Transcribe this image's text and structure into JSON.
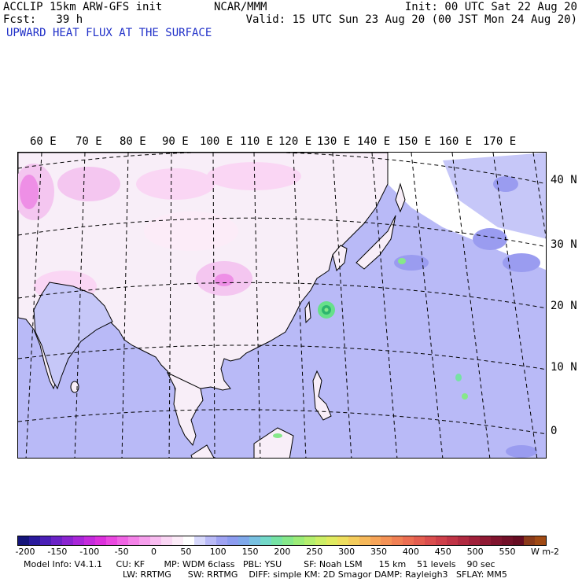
{
  "header": {
    "line1_left": "ACCLIP 15km ARW-GFS init",
    "line2_left": "Fcst:   39 h",
    "center": "NCAR/MMM",
    "init": "Init: 00 UTC Sat 22 Aug 20",
    "valid": "Valid: 15 UTC Sun 23 Aug 20 (00 JST Mon 24 Aug 20)",
    "field_title": "UPWARD HEAT FLUX AT THE SURFACE"
  },
  "map": {
    "lon_labels": [
      "60 E",
      "70 E",
      "80 E",
      "90 E",
      "100 E",
      "110 E",
      "120 E",
      "130 E",
      "140 E",
      "150 E",
      "160 E",
      "170 E"
    ],
    "lat_labels": [
      "40 N",
      "30 N",
      "20 N",
      "10 N",
      "0"
    ],
    "colors": {
      "ocean": "#b9baf7",
      "ocean_light": "#c6c7f8",
      "ocean_dark": "#9a9cf0",
      "land": "#f8eef8",
      "land_pink": "#f4c6f0",
      "land_magenta": "#ee8fe6",
      "coast": "#000000",
      "grid": "#000000",
      "typhoon_green": "#66e08a",
      "typhoon_core": "#2db56e"
    },
    "features": [
      "typhoon-near-taiwan-okinawa",
      "warm-flux-spot-east-of-luzon"
    ]
  },
  "colorbar": {
    "units": "W m-2",
    "ticks": [
      "-200",
      "-150",
      "-100",
      "-50",
      "0",
      "50",
      "100",
      "150",
      "200",
      "250",
      "300",
      "350",
      "400",
      "450",
      "500",
      "550"
    ],
    "colors": [
      "#15157a",
      "#2a1a9c",
      "#4a1fb6",
      "#6a22c6",
      "#8a24d0",
      "#a826d8",
      "#c42adc",
      "#dc30dc",
      "#ea48e0",
      "#f064e4",
      "#f482e8",
      "#f69fec",
      "#f8bcf0",
      "#fad6f4",
      "#fcecf8",
      "#ffffff",
      "#d7d8fb",
      "#b9baf7",
      "#9fa3f3",
      "#8c9cf0",
      "#7fa8ea",
      "#78c0e0",
      "#73d8c8",
      "#76e2a4",
      "#86e88a",
      "#9cec78",
      "#b4ee6e",
      "#ccee66",
      "#e0ea60",
      "#eede5e",
      "#f4cc5c",
      "#f6b85a",
      "#f6a458",
      "#f49256",
      "#f08054",
      "#ec6e52",
      "#e45e50",
      "#da4e4e",
      "#ce404a",
      "#c03446",
      "#b02a40",
      "#a0203a",
      "#901a34",
      "#80142e",
      "#721028",
      "#660c22",
      "#8a3a1a",
      "#a04a14"
    ]
  },
  "model_info": {
    "line1": "Model Info: V4.1.1     CU: KF       MP: WDM 6class   PBL: YSU        SF: Noah LSM      15 km    51 levels    90 sec",
    "line2": "LW: RRTMG      SW: RRTMG    DIFF: simple KM: 2D Smagor DAMP: Rayleigh3   SFLAY: MM5"
  }
}
